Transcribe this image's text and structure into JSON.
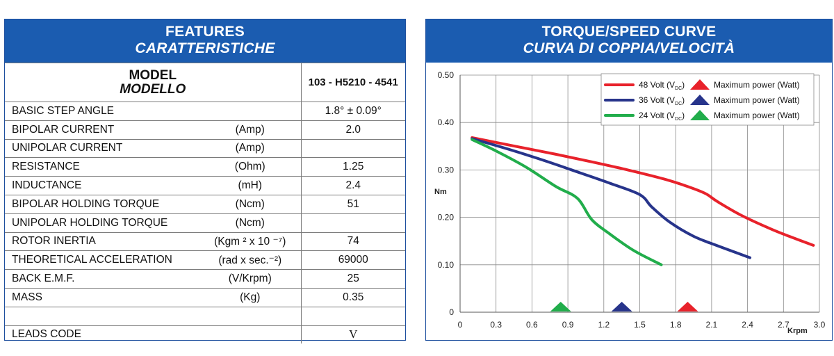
{
  "left": {
    "title_en": "FEATURES",
    "title_it": "CARATTERISTICHE",
    "model_label_en": "MODEL",
    "model_label_it": "MODELLO",
    "model_value": "103 - H5210 - 4541",
    "rows": [
      {
        "name": "BASIC STEP ANGLE",
        "unit": "",
        "value": "1.8° ± 0.09°"
      },
      {
        "name": "BIPOLAR CURRENT",
        "unit": "(Amp)",
        "value": "2.0"
      },
      {
        "name": "UNIPOLAR CURRENT",
        "unit": "(Amp)",
        "value": ""
      },
      {
        "name": "RESISTANCE",
        "unit": "(Ohm)",
        "value": "1.25"
      },
      {
        "name": "INDUCTANCE",
        "unit": "(mH)",
        "value": "2.4"
      },
      {
        "name": "BIPOLAR HOLDING TORQUE",
        "unit": "(Ncm)",
        "value": "51"
      },
      {
        "name": "UNIPOLAR HOLDING TORQUE",
        "unit": "(Ncm)",
        "value": ""
      },
      {
        "name": "ROTOR INERTIA",
        "unit": "(Kgm ² x 10 ⁻⁷)",
        "value": "74"
      },
      {
        "name": "THEORETICAL ACCELERATION",
        "unit": "(rad x sec.⁻²)",
        "value": "69000"
      },
      {
        "name": "BACK E.M.F.",
        "unit": "(V/Krpm)",
        "value": "25"
      },
      {
        "name": "MASS",
        "unit": "(Kg)",
        "value": "0.35"
      },
      {
        "name": "",
        "unit": "",
        "value": ""
      },
      {
        "name": "LEADS CODE",
        "unit": "",
        "value": "V"
      }
    ]
  },
  "right": {
    "title_en": "TORQUE/SPEED CURVE",
    "title_it": "CURVA DI COPPIA/VELOCITÀ"
  },
  "chart_data": {
    "type": "line",
    "xlabel": "Krpm",
    "ylabel": "Nm",
    "xlim": [
      0,
      3.0
    ],
    "ylim": [
      0,
      0.5
    ],
    "xticks": [
      "0",
      "0.3",
      "0.6",
      "0.9",
      "1.2",
      "1.5",
      "1.8",
      "2.1",
      "2.4",
      "2.7",
      "3.0"
    ],
    "yticks": [
      "0",
      "0.10",
      "0.20",
      "0.30",
      "0.40",
      "0.50"
    ],
    "grid": true,
    "legend_position": "top-right",
    "legend_marker_label": "Maximum power (Watt)",
    "series": [
      {
        "name": "48 Volt",
        "voltage_unit_main": "V",
        "voltage_unit_sub": "DC",
        "color": "#e8222b",
        "x": [
          0.1,
          0.5,
          0.8,
          1.1,
          1.4,
          1.7,
          1.9,
          2.05,
          2.15,
          2.35,
          2.6,
          2.8,
          2.95
        ],
        "y": [
          0.368,
          0.348,
          0.333,
          0.317,
          0.3,
          0.281,
          0.265,
          0.25,
          0.233,
          0.204,
          0.175,
          0.155,
          0.141
        ],
        "max_power_x": 1.9
      },
      {
        "name": "36 Volt",
        "voltage_unit_main": "V",
        "voltage_unit_sub": "DC",
        "color": "#27348b",
        "x": [
          0.1,
          0.4,
          0.7,
          1.0,
          1.25,
          1.5,
          1.6,
          1.75,
          1.95,
          2.15,
          2.42
        ],
        "y": [
          0.366,
          0.344,
          0.32,
          0.294,
          0.272,
          0.248,
          0.222,
          0.19,
          0.16,
          0.14,
          0.115
        ],
        "max_power_x": 1.35
      },
      {
        "name": "24 Volt",
        "voltage_unit_main": "V",
        "voltage_unit_sub": "DC",
        "color": "#21ad4b",
        "x": [
          0.1,
          0.3,
          0.55,
          0.8,
          0.98,
          1.1,
          1.25,
          1.45,
          1.68
        ],
        "y": [
          0.364,
          0.34,
          0.306,
          0.265,
          0.24,
          0.195,
          0.165,
          0.13,
          0.1
        ],
        "max_power_x": 0.84
      }
    ]
  }
}
